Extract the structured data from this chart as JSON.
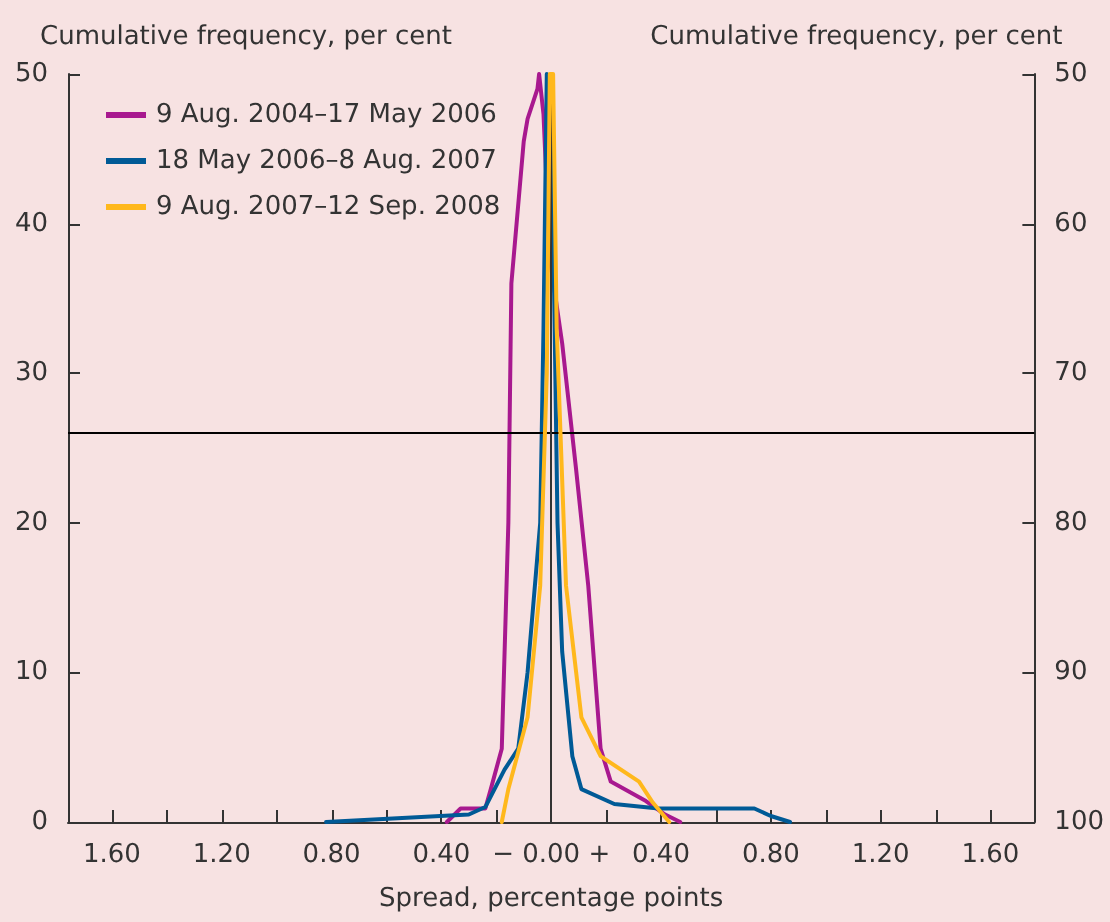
{
  "chart_data": {
    "type": "line",
    "xlabel": "Spread, percentage points",
    "ylabel": "Cumulative frequency, per cent",
    "y2label": "Cumulative frequency, per cent",
    "xlim": [
      -1.76,
      1.76
    ],
    "xticks": [
      {
        "value": -1.6,
        "label": "1.60"
      },
      {
        "value": -1.4,
        "label": null
      },
      {
        "value": -1.2,
        "label": "1.20"
      },
      {
        "value": -1.0,
        "label": null
      },
      {
        "value": -0.8,
        "label": "0.80"
      },
      {
        "value": -0.6,
        "label": null
      },
      {
        "value": -0.4,
        "label": "0.40"
      },
      {
        "value": -0.2,
        "label": null
      },
      {
        "value": 0,
        "label": "− 0.00 +"
      },
      {
        "value": 0.2,
        "label": null
      },
      {
        "value": 0.4,
        "label": "0.40"
      },
      {
        "value": 0.6,
        "label": null
      },
      {
        "value": 0.8,
        "label": "0.80"
      },
      {
        "value": 1.0,
        "label": null
      },
      {
        "value": 1.2,
        "label": "1.20"
      },
      {
        "value": 1.4,
        "label": null
      },
      {
        "value": 1.6,
        "label": "1.60"
      }
    ],
    "ylim": [
      0,
      50
    ],
    "yticks": [
      0,
      10,
      20,
      30,
      40,
      50
    ],
    "y2lim": [
      100,
      50
    ],
    "y2ticks": [
      100,
      90,
      80,
      70,
      60,
      50
    ],
    "ref_lines": [
      {
        "axis": "y",
        "value": 26,
        "color": "#000000"
      },
      {
        "axis": "x",
        "value": 0,
        "color": "#333333"
      }
    ],
    "grid": false,
    "legend": "top left",
    "marker": "none",
    "line_style": "solid",
    "series": [
      {
        "name": "9 Aug. 2004–17 May 2006",
        "color": "#a8198f",
        "x": [
          -0.38,
          -0.33,
          -0.24,
          -0.22,
          -0.18,
          -0.156,
          -0.145,
          -0.1,
          -0.086,
          -0.05,
          -0.044,
          -0.028,
          -0.005,
          0.04,
          0.09,
          0.135,
          0.18,
          0.217,
          0.345,
          0.415,
          0.47
        ],
        "values": [
          0,
          0.9,
          0.9,
          2.2,
          4.9,
          20,
          36,
          45.5,
          47,
          49,
          50,
          47.3,
          37.7,
          32,
          23.7,
          15.8,
          4.9,
          2.7,
          1.4,
          0.5,
          0
        ]
      },
      {
        "name": "18 May 2006–8 Aug. 2007",
        "color": "#005a96",
        "x": [
          -0.82,
          -0.3,
          -0.24,
          -0.17,
          -0.12,
          -0.086,
          -0.04,
          -0.028,
          -0.016,
          0,
          0.007,
          0.023,
          0.04,
          0.077,
          0.11,
          0.23,
          0.39,
          0.74,
          0.8,
          0.87
        ],
        "values": [
          0,
          0.5,
          1,
          3.5,
          4.9,
          10,
          20,
          33,
          50,
          46.4,
          40,
          20,
          11.4,
          4.4,
          2.2,
          1.2,
          0.9,
          0.9,
          0.4,
          0
        ]
      },
      {
        "name": "9 Aug. 2007–12 Sep. 2008",
        "color": "#ffb81c",
        "x": [
          -0.18,
          -0.156,
          -0.086,
          -0.04,
          -0.016,
          -0.005,
          0.007,
          0.02,
          0.054,
          0.11,
          0.18,
          0.32,
          0.37,
          0.43
        ],
        "values": [
          0,
          2.2,
          7,
          15.8,
          30,
          50,
          50,
          33,
          15.8,
          7,
          4.4,
          2.7,
          1.3,
          0
        ]
      }
    ]
  }
}
